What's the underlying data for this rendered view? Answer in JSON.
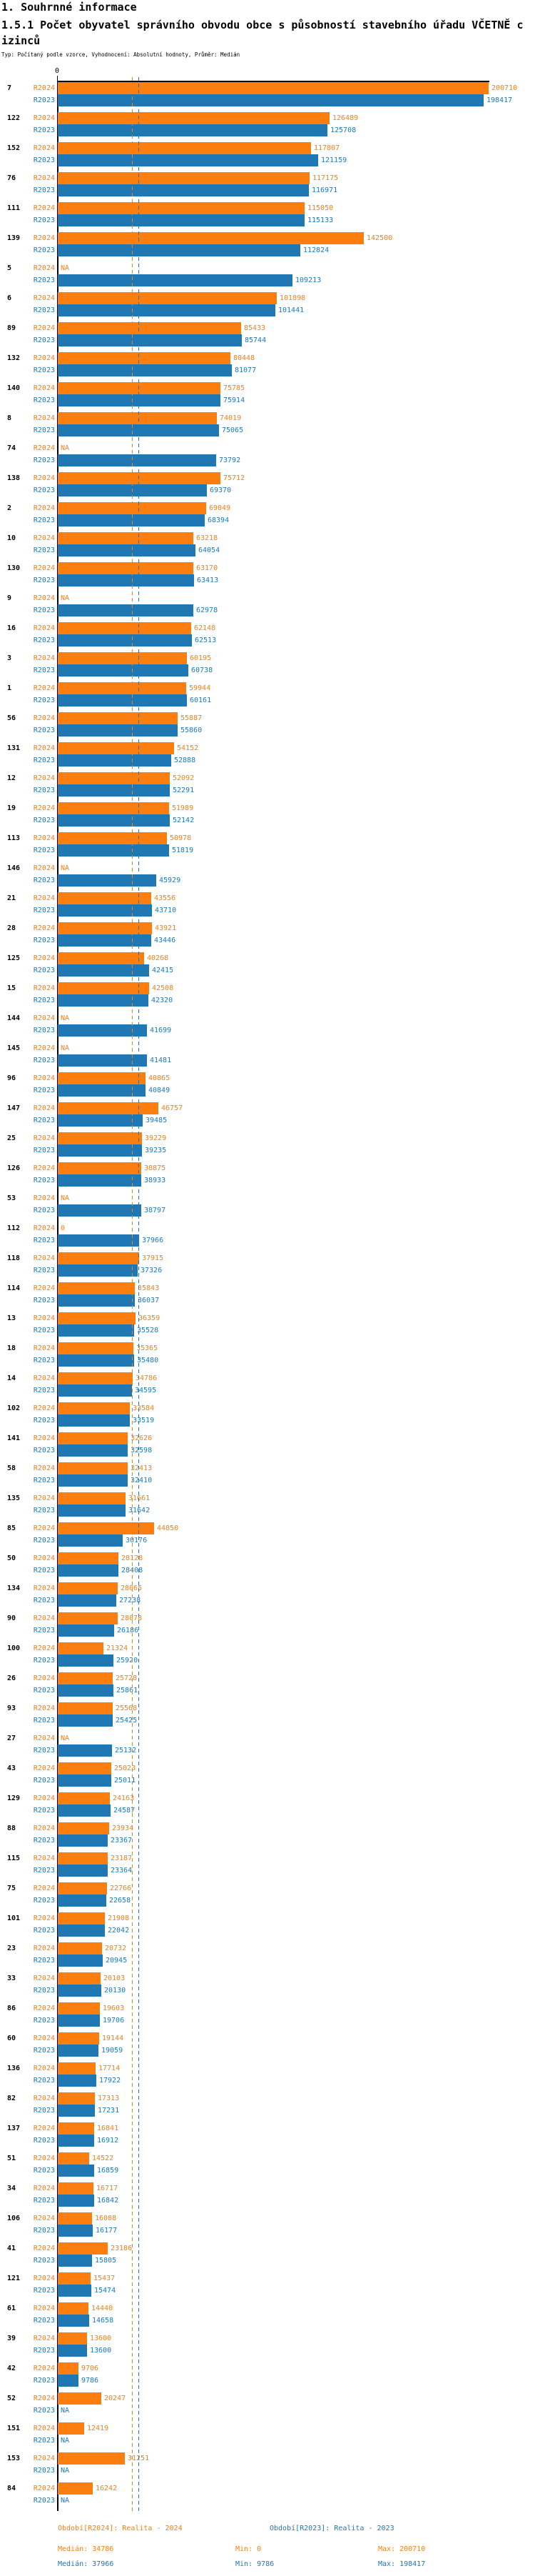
{
  "header": {
    "section_title": "1. Souhrnné informace",
    "chart_title": "1.5.1 Počet obyvatel správního obvodu obce s působností stavebního úřadu VČETNĚ cizinců",
    "subtitle": "Typ: Počítaný podle vzorce, Vyhodnocení: Absolutní hodnoty, Průměr: Medián"
  },
  "chart_data": {
    "type": "bar",
    "orientation": "horizontal",
    "axis": {
      "zero_label": "0"
    },
    "series_labels": {
      "r2024": "R2024",
      "r2023": "R2023"
    },
    "colors": {
      "r2024": "#fb7e0e",
      "r2023": "#1f77b4",
      "axis": "#000000"
    },
    "na_label": "NA",
    "medians": {
      "r2024": 34786,
      "r2023": 37966
    },
    "legend_position": "bottom",
    "grid": false,
    "groups": [
      {
        "id": "7",
        "r2024": 200710,
        "r2023": 198417
      },
      {
        "id": "122",
        "r2024": 126489,
        "r2023": 125708
      },
      {
        "id": "152",
        "r2024": 117807,
        "r2023": 121159
      },
      {
        "id": "76",
        "r2024": 117175,
        "r2023": 116971
      },
      {
        "id": "111",
        "r2024": 115050,
        "r2023": 115133
      },
      {
        "id": "139",
        "r2024": 142500,
        "r2023": 112824
      },
      {
        "id": "5",
        "r2024": null,
        "r2023": 109213
      },
      {
        "id": "6",
        "r2024": 101898,
        "r2023": 101441
      },
      {
        "id": "89",
        "r2024": 85433,
        "r2023": 85744
      },
      {
        "id": "132",
        "r2024": 80448,
        "r2023": 81077
      },
      {
        "id": "140",
        "r2024": 75785,
        "r2023": 75914
      },
      {
        "id": "8",
        "r2024": 74019,
        "r2023": 75065
      },
      {
        "id": "74",
        "r2024": null,
        "r2023": 73792
      },
      {
        "id": "138",
        "r2024": 75712,
        "r2023": 69370
      },
      {
        "id": "2",
        "r2024": 69049,
        "r2023": 68394
      },
      {
        "id": "10",
        "r2024": 63218,
        "r2023": 64054
      },
      {
        "id": "130",
        "r2024": 63170,
        "r2023": 63413
      },
      {
        "id": "9",
        "r2024": null,
        "r2023": 62978
      },
      {
        "id": "16",
        "r2024": 62148,
        "r2023": 62513
      },
      {
        "id": "3",
        "r2024": 60195,
        "r2023": 60738
      },
      {
        "id": "1",
        "r2024": 59944,
        "r2023": 60161
      },
      {
        "id": "56",
        "r2024": 55887,
        "r2023": 55860
      },
      {
        "id": "131",
        "r2024": 54152,
        "r2023": 52888
      },
      {
        "id": "12",
        "r2024": 52092,
        "r2023": 52291
      },
      {
        "id": "19",
        "r2024": 51989,
        "r2023": 52142
      },
      {
        "id": "113",
        "r2024": 50978,
        "r2023": 51819
      },
      {
        "id": "146",
        "r2024": null,
        "r2023": 45929
      },
      {
        "id": "21",
        "r2024": 43556,
        "r2023": 43710
      },
      {
        "id": "28",
        "r2024": 43921,
        "r2023": 43446
      },
      {
        "id": "125",
        "r2024": 40268,
        "r2023": 42415
      },
      {
        "id": "15",
        "r2024": 42508,
        "r2023": 42320
      },
      {
        "id": "144",
        "r2024": null,
        "r2023": 41699
      },
      {
        "id": "145",
        "r2024": null,
        "r2023": 41481
      },
      {
        "id": "96",
        "r2024": 40865,
        "r2023": 40849
      },
      {
        "id": "147",
        "r2024": 46757,
        "r2023": 39485
      },
      {
        "id": "25",
        "r2024": 39229,
        "r2023": 39235
      },
      {
        "id": "126",
        "r2024": 38875,
        "r2023": 38933
      },
      {
        "id": "53",
        "r2024": null,
        "r2023": 38797
      },
      {
        "id": "112",
        "r2024": 0,
        "r2023": 37966
      },
      {
        "id": "118",
        "r2024": 37915,
        "r2023": 37326
      },
      {
        "id": "114",
        "r2024": 35843,
        "r2023": 36037
      },
      {
        "id": "13",
        "r2024": 36359,
        "r2023": 35528
      },
      {
        "id": "18",
        "r2024": 35365,
        "r2023": 35480
      },
      {
        "id": "14",
        "r2024": 34786,
        "r2023": 34595
      },
      {
        "id": "102",
        "r2024": 33584,
        "r2023": 33519
      },
      {
        "id": "141",
        "r2024": 32626,
        "r2023": 32598
      },
      {
        "id": "58",
        "r2024": 32413,
        "r2023": 32410
      },
      {
        "id": "135",
        "r2024": 31661,
        "r2023": 31642
      },
      {
        "id": "85",
        "r2024": 44850,
        "r2023": 30176
      },
      {
        "id": "50",
        "r2024": 28128,
        "r2023": 28408
      },
      {
        "id": "134",
        "r2024": 28065,
        "r2023": 27238
      },
      {
        "id": "90",
        "r2024": 28078,
        "r2023": 26186
      },
      {
        "id": "100",
        "r2024": 21324,
        "r2023": 25920
      },
      {
        "id": "26",
        "r2024": 25728,
        "r2023": 25861
      },
      {
        "id": "93",
        "r2024": 25568,
        "r2023": 25425
      },
      {
        "id": "27",
        "r2024": null,
        "r2023": 25132
      },
      {
        "id": "43",
        "r2024": 25023,
        "r2023": 25011
      },
      {
        "id": "129",
        "r2024": 24163,
        "r2023": 24587
      },
      {
        "id": "88",
        "r2024": 23934,
        "r2023": 23367
      },
      {
        "id": "115",
        "r2024": 23187,
        "r2023": 23364
      },
      {
        "id": "75",
        "r2024": 22766,
        "r2023": 22658
      },
      {
        "id": "101",
        "r2024": 21908,
        "r2023": 22042
      },
      {
        "id": "23",
        "r2024": 20732,
        "r2023": 20945
      },
      {
        "id": "33",
        "r2024": 20103,
        "r2023": 20130
      },
      {
        "id": "86",
        "r2024": 19603,
        "r2023": 19706
      },
      {
        "id": "60",
        "r2024": 19144,
        "r2023": 19059
      },
      {
        "id": "136",
        "r2024": 17714,
        "r2023": 17922
      },
      {
        "id": "82",
        "r2024": 17313,
        "r2023": 17231
      },
      {
        "id": "137",
        "r2024": 16841,
        "r2023": 16912
      },
      {
        "id": "51",
        "r2024": 14522,
        "r2023": 16859
      },
      {
        "id": "34",
        "r2024": 16717,
        "r2023": 16842
      },
      {
        "id": "106",
        "r2024": 16088,
        "r2023": 16177
      },
      {
        "id": "41",
        "r2024": 23186,
        "r2023": 15805
      },
      {
        "id": "121",
        "r2024": 15437,
        "r2023": 15474
      },
      {
        "id": "61",
        "r2024": 14440,
        "r2023": 14658
      },
      {
        "id": "39",
        "r2024": 13600,
        "r2023": 13600
      },
      {
        "id": "42",
        "r2024": 9706,
        "r2023": 9786
      },
      {
        "id": "52",
        "r2024": 20247,
        "r2023": null
      },
      {
        "id": "151",
        "r2024": 12419,
        "r2023": null
      },
      {
        "id": "153",
        "r2024": 31251,
        "r2023": null
      },
      {
        "id": "84",
        "r2024": 16242,
        "r2023": null
      }
    ]
  },
  "footer": {
    "legend_r2024": "Období[R2024]: Realita - 2024",
    "legend_r2023": "Období[R2023]: Realita - 2023",
    "stats_r2024": {
      "median_label": "Medián: 34786",
      "min_label": "Min: 0",
      "max_label": "Max: 200710"
    },
    "stats_r2023": {
      "median_label": "Medián: 37966",
      "min_label": "Min: 9786",
      "max_label": "Max: 198417"
    }
  }
}
